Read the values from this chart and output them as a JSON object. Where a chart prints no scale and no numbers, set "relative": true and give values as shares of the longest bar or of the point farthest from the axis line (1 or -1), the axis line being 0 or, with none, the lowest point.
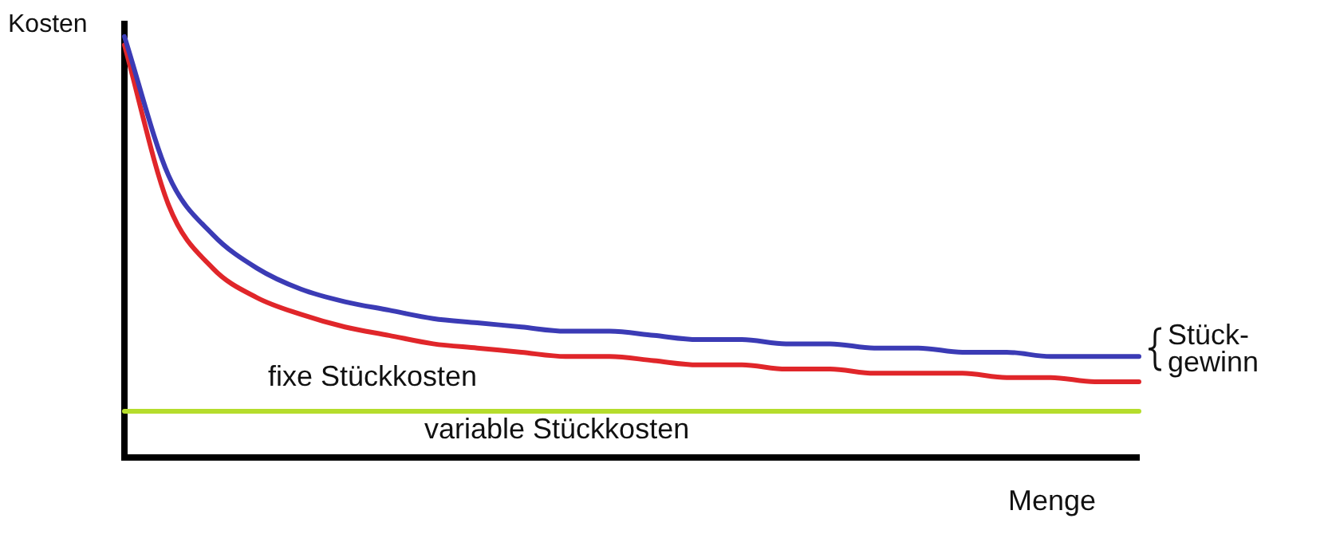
{
  "chart_data": {
    "type": "line",
    "relative": true,
    "xlabel": "Menge",
    "ylabel": "Kosten",
    "grid": false,
    "legend": false,
    "marker": "none",
    "line_style": "solid",
    "categories": [
      null,
      null,
      null,
      null,
      null,
      null,
      null,
      null,
      null,
      null,
      null,
      null,
      null,
      null,
      null,
      null,
      null,
      null,
      null,
      null,
      null,
      null,
      null,
      null
    ],
    "series": [
      {
        "color": "#3b3bb5",
        "values": [
          1.0,
          0.67,
          0.53,
          0.45,
          0.4,
          0.37,
          0.35,
          0.33,
          0.32,
          0.31,
          0.3,
          0.3,
          0.29,
          0.28,
          0.28,
          0.27,
          0.27,
          0.26,
          0.26,
          0.25,
          0.25,
          0.24,
          0.24,
          0.24
        ]
      },
      {
        "color": "#e0262a",
        "values": [
          0.98,
          0.6,
          0.45,
          0.38,
          0.34,
          0.31,
          0.29,
          0.27,
          0.26,
          0.25,
          0.24,
          0.24,
          0.23,
          0.22,
          0.22,
          0.21,
          0.21,
          0.2,
          0.2,
          0.2,
          0.19,
          0.19,
          0.18,
          0.18
        ]
      },
      {
        "color": "#b5dd2c",
        "values": [
          0.11,
          0.11,
          0.11,
          0.11,
          0.11,
          0.11,
          0.11,
          0.11,
          0.11,
          0.11,
          0.11,
          0.11,
          0.11,
          0.11,
          0.11,
          0.11,
          0.11,
          0.11,
          0.11,
          0.11,
          0.11,
          0.11,
          0.11,
          0.11
        ]
      }
    ],
    "annotations": [
      "fixe Stückkosten",
      "variable Stückkosten",
      "Stück-\ngewinn"
    ]
  }
}
